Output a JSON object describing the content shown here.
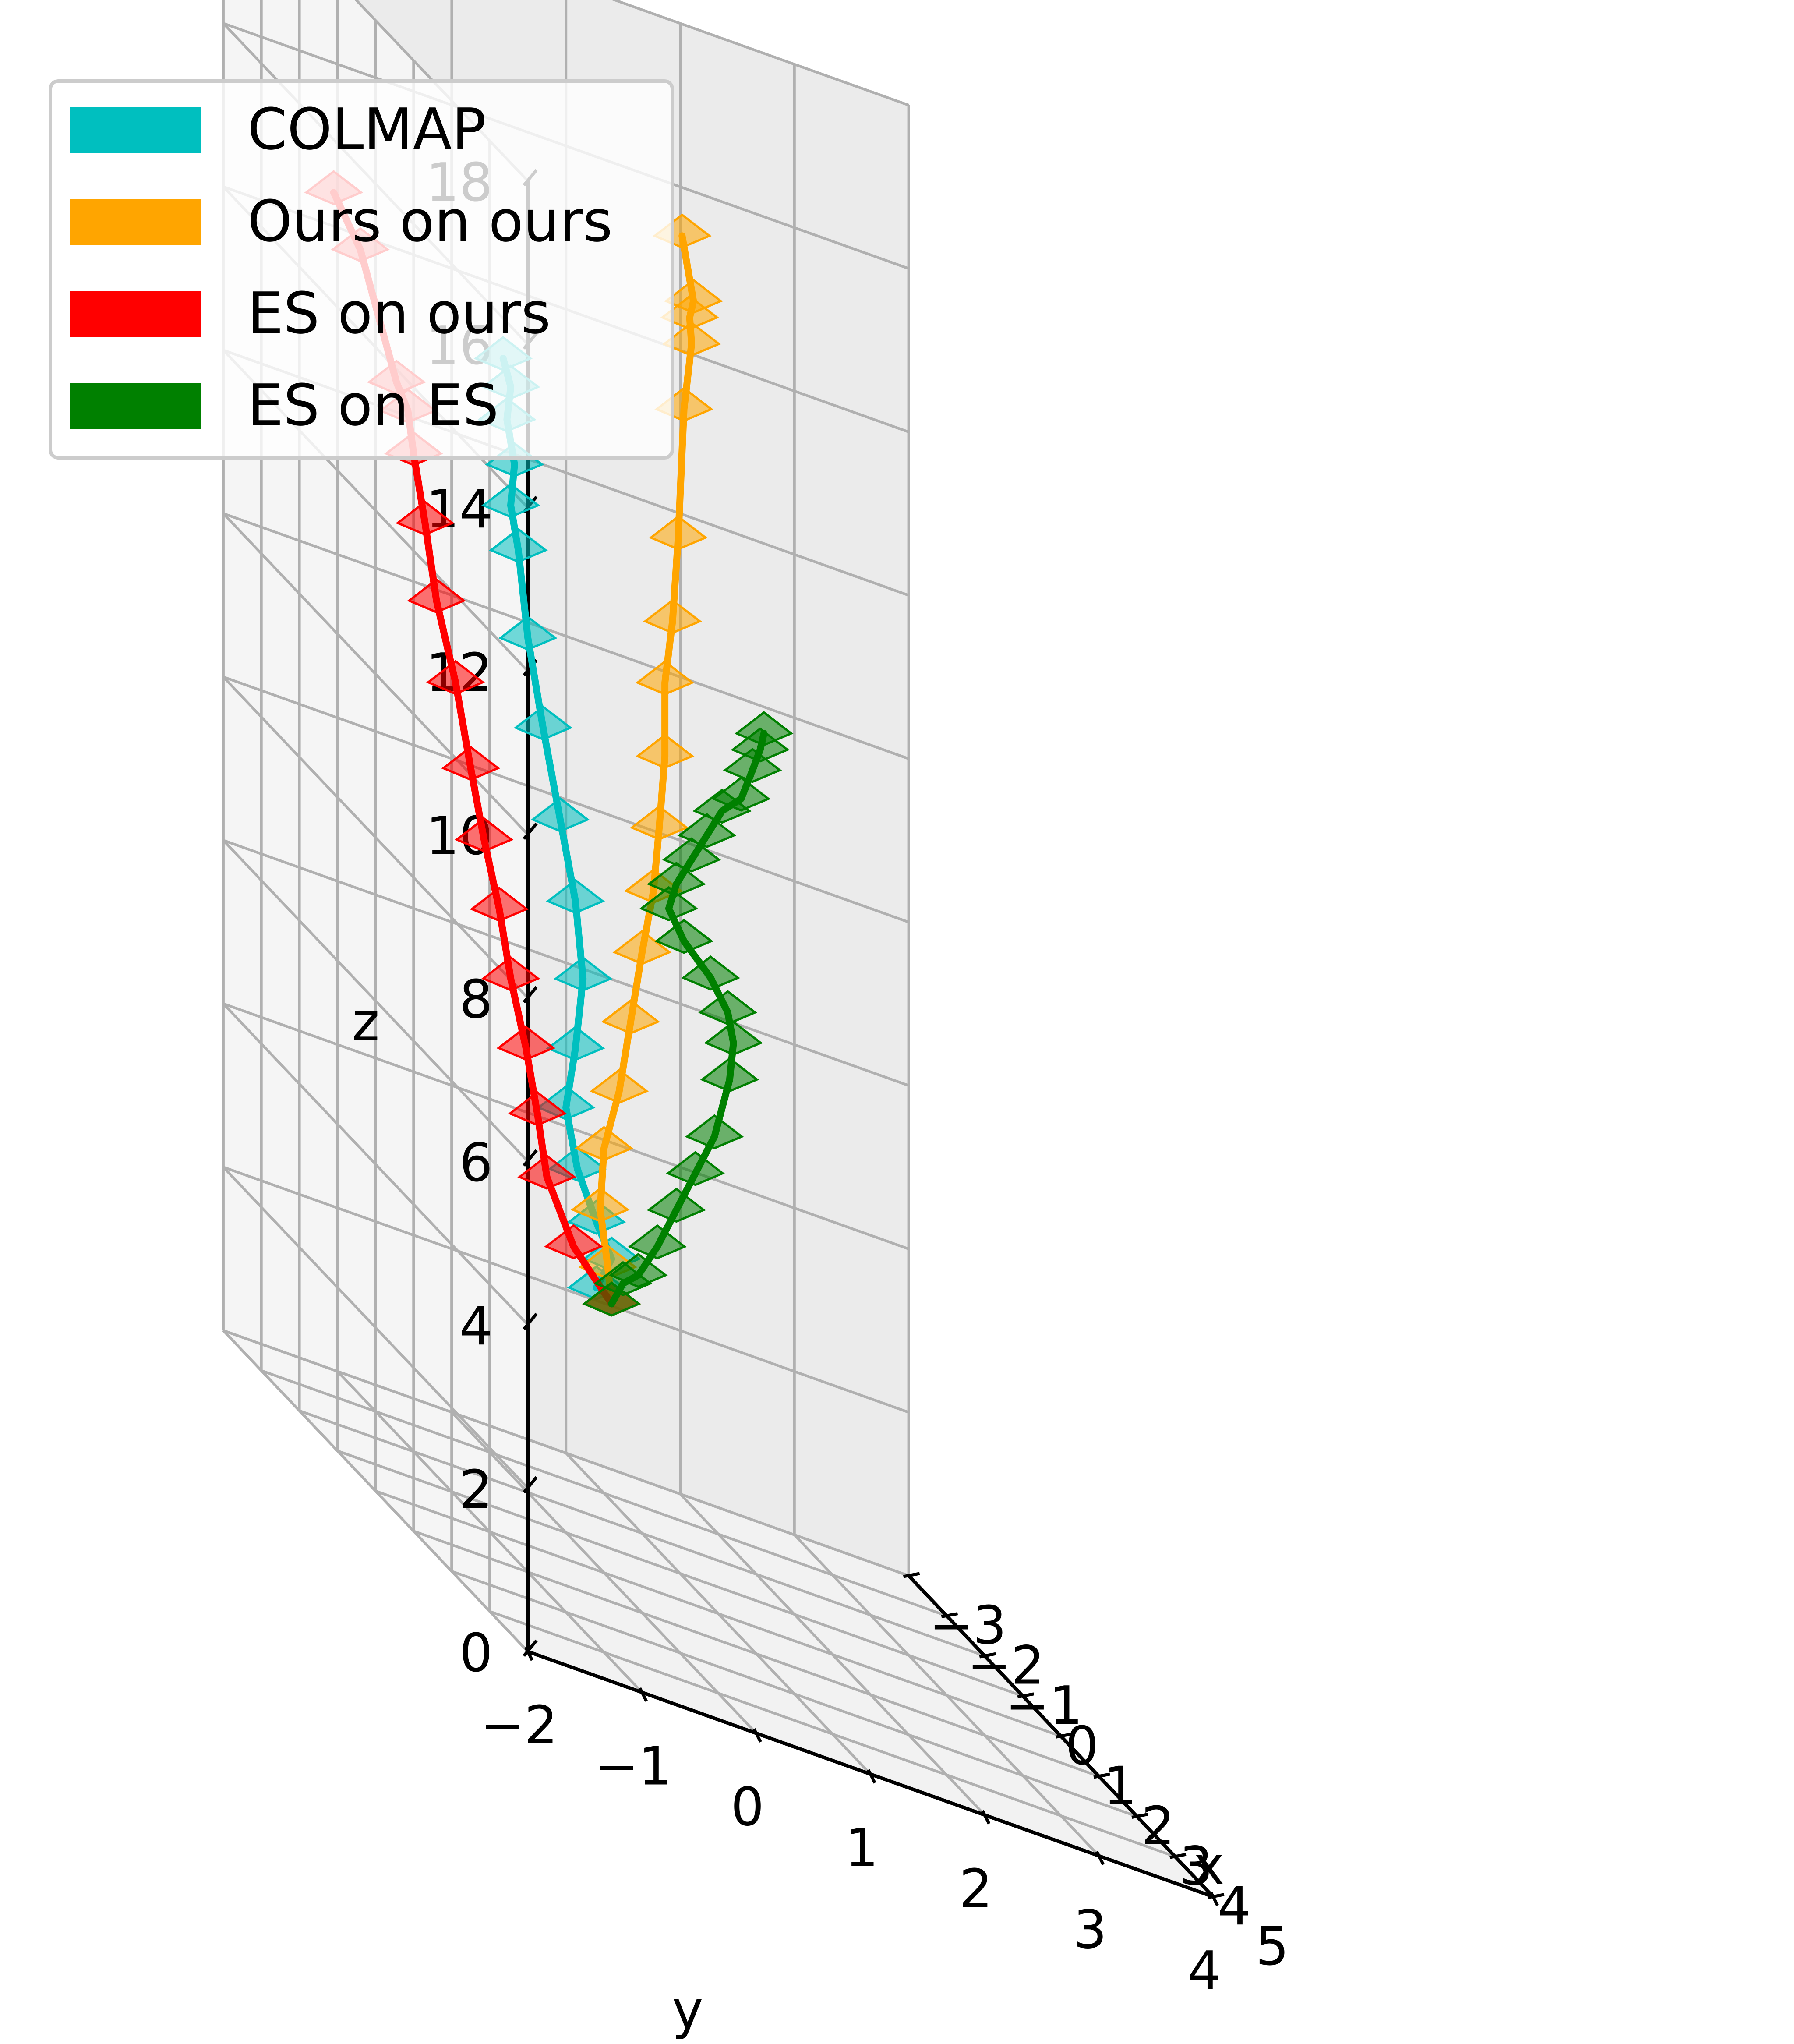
{
  "chart_data": {
    "type": "line3d",
    "title": "",
    "xlabel": "x",
    "ylabel": "y",
    "zlabel": "z",
    "x_ticks": [
      5,
      4,
      3,
      2,
      1,
      0,
      -1,
      -2,
      -3
    ],
    "y_ticks": [
      -2,
      -1,
      0,
      1,
      2,
      3,
      4
    ],
    "z_ticks": [
      0,
      2,
      4,
      6,
      8,
      10,
      12,
      14,
      16,
      18
    ],
    "xlim": [
      5,
      -3
    ],
    "ylim": [
      -2,
      4
    ],
    "zlim": [
      0,
      18
    ],
    "grid": true,
    "legend_position": "top-left",
    "series": [
      {
        "name": "COLMAP",
        "color": "#00bfbf",
        "points": [
          [
            -0.1,
            0.3,
            3.1
          ],
          [
            0.0,
            0.4,
            3.55
          ],
          [
            0.2,
            0.2,
            4.0
          ],
          [
            0.3,
            0.0,
            4.6
          ],
          [
            0.3,
            -0.1,
            5.3
          ],
          [
            0.4,
            -0.05,
            6.1
          ],
          [
            0.45,
            0.0,
            7.0
          ],
          [
            0.4,
            -0.05,
            7.9
          ],
          [
            0.3,
            -0.15,
            8.8
          ],
          [
            0.15,
            -0.25,
            9.8
          ],
          [
            0.05,
            -0.35,
            10.8
          ],
          [
            -0.05,
            -0.4,
            11.8
          ],
          [
            -0.1,
            -0.45,
            12.3
          ],
          [
            -0.15,
            -0.4,
            12.8
          ],
          [
            -0.2,
            -0.45,
            13.3
          ],
          [
            -0.25,
            -0.4,
            13.7
          ],
          [
            -0.3,
            -0.45,
            14.0
          ]
        ]
      },
      {
        "name": "Ours on ours",
        "color": "#ffa500",
        "points": [
          [
            0.0,
            0.4,
            3.0
          ],
          [
            0.2,
            0.3,
            3.5
          ],
          [
            0.3,
            0.2,
            4.2
          ],
          [
            0.4,
            0.2,
            5.0
          ],
          [
            0.5,
            0.3,
            5.8
          ],
          [
            0.5,
            0.4,
            6.7
          ],
          [
            0.5,
            0.5,
            7.6
          ],
          [
            0.5,
            0.6,
            8.4
          ],
          [
            0.5,
            0.65,
            9.2
          ],
          [
            0.5,
            0.7,
            10.1
          ],
          [
            0.5,
            0.7,
            11.0
          ],
          [
            0.55,
            0.75,
            11.8
          ],
          [
            0.4,
            0.85,
            12.8
          ],
          [
            0.1,
            1.0,
            14.3
          ],
          [
            0.0,
            1.1,
            15.1
          ],
          [
            -0.05,
            1.1,
            15.4
          ],
          [
            -0.1,
            1.15,
            15.6
          ],
          [
            -0.25,
            1.1,
            16.3
          ]
        ]
      },
      {
        "name": "ES on ours",
        "color": "#ff0000",
        "points": [
          [
            0.0,
            0.4,
            3.0
          ],
          [
            0.2,
            0.0,
            3.6
          ],
          [
            0.4,
            -0.3,
            4.4
          ],
          [
            0.6,
            -0.45,
            5.2
          ],
          [
            0.75,
            -0.6,
            6.0
          ],
          [
            0.8,
            -0.75,
            6.8
          ],
          [
            0.8,
            -0.85,
            7.6
          ],
          [
            0.85,
            -1.0,
            8.4
          ],
          [
            0.8,
            -1.1,
            9.2
          ],
          [
            0.85,
            -1.25,
            10.2
          ],
          [
            0.8,
            -1.4,
            11.1
          ],
          [
            0.8,
            -1.5,
            12.0
          ],
          [
            0.8,
            -1.6,
            12.8
          ],
          [
            0.8,
            -1.65,
            13.3
          ],
          [
            0.8,
            -1.75,
            13.6
          ],
          [
            0.6,
            -2.0,
            15.0
          ],
          [
            0.35,
            -2.15,
            15.5
          ]
        ]
      },
      {
        "name": "ES on ES",
        "color": "#008000",
        "points": [
          [
            0.0,
            0.4,
            3.0
          ],
          [
            0.0,
            0.5,
            3.3
          ],
          [
            0.1,
            0.6,
            3.5
          ],
          [
            0.0,
            0.8,
            3.9
          ],
          [
            -0.1,
            1.0,
            4.4
          ],
          [
            -0.2,
            1.2,
            4.9
          ],
          [
            -0.3,
            1.4,
            5.4
          ],
          [
            -0.5,
            1.6,
            6.1
          ],
          [
            -0.7,
            1.7,
            6.5
          ],
          [
            -0.85,
            1.7,
            6.8
          ],
          [
            -1.0,
            1.6,
            7.1
          ],
          [
            -1.1,
            1.4,
            7.4
          ],
          [
            -1.2,
            1.3,
            7.7
          ],
          [
            -1.3,
            1.4,
            8.0
          ],
          [
            -1.5,
            1.6,
            8.3
          ],
          [
            -1.7,
            1.8,
            8.6
          ],
          [
            -1.9,
            2.0,
            8.9
          ],
          [
            -2.0,
            2.2,
            9.1
          ],
          [
            -2.0,
            2.3,
            9.5
          ],
          [
            -1.95,
            2.35,
            9.8
          ],
          [
            -2.0,
            2.4,
            10.0
          ]
        ]
      }
    ]
  }
}
